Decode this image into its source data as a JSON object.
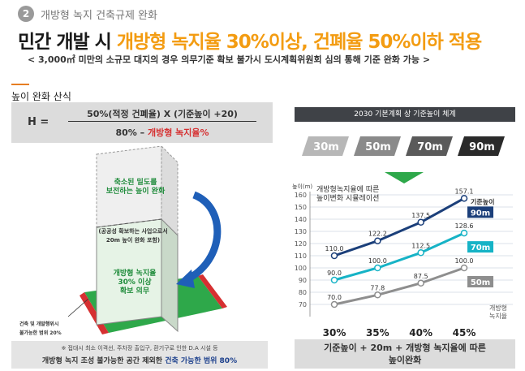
{
  "section": {
    "number": "2",
    "title": "개방형 녹지  건축규제 완화"
  },
  "headline": {
    "part_black": "민간 개발 시 ",
    "part_orange": "개방형 녹지율 30%이상, 건폐율 50%이하 적용"
  },
  "subline": "< 3,000㎡ 미만의 소규모 대지의 경우 의무기준 확보  불가시  도시계획위원회 심의 통해 기준 완화 가능 >",
  "formula": {
    "title": "높이 완화 산식",
    "h": "H =",
    "numerator": "50%(적정 건폐율) X (기준높이 +20)",
    "denominator_prefix": "80% – ",
    "denominator_red": "개방형 녹지율%"
  },
  "illustration": {
    "upper_label": "축소된 밀도를\n보전하는 높이 완화",
    "mid_label": "(공공성 확보하는 사업으로서\n20m 높이 완화 포함)",
    "lower_label": "개방형 녹지율\n30% 이상\n확보 의무",
    "side_label": "건축 및 개발행위시\n불가능한 범위 20%"
  },
  "note": {
    "line1": "※ 접대시 최소 이격선, 주차장 출입구, 환기구로 인한 D.A 시설 등",
    "line2_prefix": "개방형 녹지 조성 불가능한 공간 제외한  ",
    "line2_blue": "건축 가능한 범위 80%"
  },
  "plan": {
    "title": "2030 기본계획 상 기준높이 체계",
    "levels": [
      "30m",
      "50m",
      "70m",
      "90m"
    ]
  },
  "chart_data": {
    "type": "line",
    "ylabel": "높이(m)",
    "ylim": [
      60,
      160
    ],
    "yticks": [
      70,
      80,
      90,
      100,
      110,
      120,
      130,
      140,
      150,
      160
    ],
    "x": [
      "30%",
      "35%",
      "40%",
      "45%"
    ],
    "xlabel": "개방형\n녹지율",
    "annotation": "개방형녹지율에 따른\n높이변화 시뮬레이션",
    "series": [
      {
        "name": "90m",
        "color": "#1b3f7a",
        "values": [
          110.0,
          122.2,
          137.5,
          157.1
        ],
        "labels": [
          "110.0",
          "122.2",
          "137.5",
          "157.1"
        ]
      },
      {
        "name": "70m",
        "color": "#16b3c6",
        "values": [
          90.0,
          100.0,
          112.5,
          128.6
        ],
        "labels": [
          "90.0",
          "100.0",
          "112.5",
          "128.6"
        ]
      },
      {
        "name": "50m",
        "color": "#8e8e8e",
        "values": [
          70.0,
          77.8,
          87.5,
          100.0
        ],
        "labels": [
          "70.0",
          "77.8",
          "87.5",
          "100.0"
        ]
      }
    ],
    "legend_top_label": "기준높이",
    "caption": "기준높이 + 20m + 개방형 녹지율에 따른\n높이완화"
  }
}
